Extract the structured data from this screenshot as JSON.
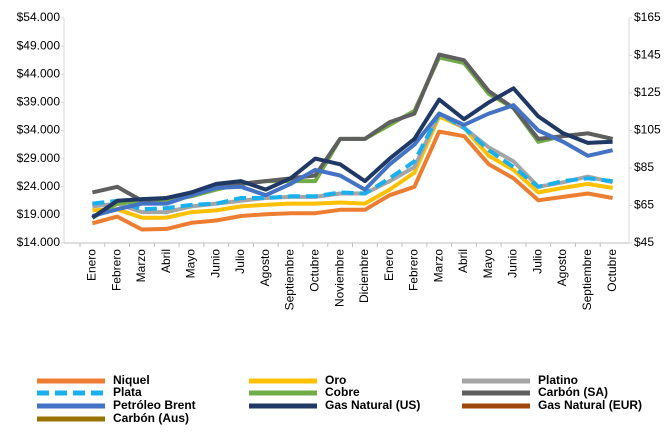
{
  "chart_data": {
    "type": "line",
    "categories": [
      "Enero",
      "Febrero",
      "Marzo",
      "Abril",
      "Mayo",
      "Junio",
      "Julio",
      "Agosto",
      "Septiembre",
      "Octubre",
      "Noviembre",
      "Diciembre",
      "Enero",
      "Febrero",
      "Marzo",
      "Abril",
      "Mayo",
      "Junio",
      "Julio",
      "Agosto",
      "Septiembre",
      "Octubre"
    ],
    "ylim": [
      14000,
      54000
    ],
    "yticks": [
      {
        "value": 14000,
        "label": "$14.000"
      },
      {
        "value": 19000,
        "label": "$19.000"
      },
      {
        "value": 24000,
        "label": "$24.000"
      },
      {
        "value": 29000,
        "label": "$29.000"
      },
      {
        "value": 34000,
        "label": "$34.000"
      },
      {
        "value": 39000,
        "label": "$39.000"
      },
      {
        "value": 44000,
        "label": "$44.000"
      },
      {
        "value": 49000,
        "label": "$49.000"
      },
      {
        "value": 54000,
        "label": "$54.000"
      }
    ],
    "y2lim": [
      45,
      165
    ],
    "y2ticks": [
      {
        "value": 45,
        "label": "$45"
      },
      {
        "value": 65,
        "label": "$65"
      },
      {
        "value": 85,
        "label": "$85"
      },
      {
        "value": 105,
        "label": "$105"
      },
      {
        "value": 125,
        "label": "$125"
      },
      {
        "value": 145,
        "label": "$145"
      },
      {
        "value": 165,
        "label": "$165"
      }
    ],
    "grid": false,
    "legend": "bottom",
    "series": [
      {
        "name": "Niquel",
        "color": "#ed7d31",
        "values": [
          17500,
          18700,
          16400,
          16500,
          17600,
          18000,
          18800,
          19100,
          19300,
          19300,
          19900,
          19900,
          22500,
          24000,
          33800,
          33000,
          28000,
          25500,
          21600,
          22200,
          22800,
          22000
        ]
      },
      {
        "name": "Oro",
        "color": "#ffc000",
        "axis": "y2",
        "values": [
          62.4,
          63,
          58.5,
          58.5,
          61.5,
          62.4,
          64.5,
          65.4,
          66,
          66,
          66.6,
          66,
          73.5,
          82.5,
          112.5,
          106.5,
          91.5,
          84,
          72,
          74.4,
          76.5,
          74.4
        ]
      },
      {
        "name": "Platino",
        "color": "#a5a5a5",
        "axis": "y2",
        "values": [
          64.5,
          66,
          61.5,
          61.5,
          64.5,
          66,
          67.5,
          69,
          69.6,
          69.6,
          71.4,
          71.4,
          78,
          85.5,
          114,
          106.5,
          96,
          88.5,
          75,
          77.4,
          80.4,
          77.4
        ]
      },
      {
        "name": "Plata",
        "color": "#1ab0ee",
        "axis": "y2",
        "dashed": true,
        "values": [
          66,
          67.5,
          63,
          63.6,
          65.4,
          66,
          69,
          69,
          69.9,
          69.9,
          72,
          71.4,
          79.5,
          88.5,
          114,
          106.5,
          94.5,
          85.5,
          75,
          78,
          79.5,
          78
        ]
      },
      {
        "name": "Cobre",
        "color": "#70ad47",
        "axis": "y2",
        "values": [
          58.5,
          66,
          67.5,
          67.5,
          69.9,
          73.5,
          76.5,
          78,
          78,
          78,
          100.5,
          100.5,
          108,
          115.5,
          144,
          141,
          124.5,
          117,
          99,
          102,
          103.5,
          100.5
        ]
      },
      {
        "name": "Carbón (SA)",
        "color": "#5f5f5f",
        "axis": "y2",
        "values": [
          72,
          75,
          67.5,
          69,
          72,
          75,
          76.5,
          78,
          79.5,
          81,
          100.5,
          100.5,
          109.5,
          114,
          145.5,
          142.5,
          126,
          117,
          100.5,
          102,
          103.5,
          100.5
        ]
      },
      {
        "name": "Petróleo Brent",
        "color": "#4472c4",
        "axis": "y2",
        "values": [
          59.4,
          63,
          66,
          66,
          70.5,
          74.4,
          75,
          70.5,
          76.5,
          84,
          81,
          73.5,
          87,
          97.5,
          114,
          108,
          114,
          118.5,
          105,
          99,
          91.5,
          94.5
        ]
      },
      {
        "name": "Gas Natural (US)",
        "color": "#203864",
        "axis": "y2",
        "values": [
          58.5,
          67.5,
          68.4,
          69,
          72,
          76.5,
          78,
          73.5,
          79.5,
          90,
          87,
          78,
          90,
          100.5,
          121.5,
          111,
          120,
          127.5,
          112.5,
          103.5,
          98.4,
          99
        ]
      },
      {
        "name": "Gas Natural (EUR)",
        "color": "#9e480e",
        "axis": "y2",
        "values": [
          null,
          null,
          null,
          null,
          null,
          null,
          null,
          null,
          null,
          null,
          null,
          null,
          null,
          null,
          null,
          null,
          null,
          null,
          null,
          null,
          null,
          null
        ]
      },
      {
        "name": "Carbón (Aus)",
        "color": "#997300",
        "axis": "y2",
        "values": [
          null,
          null,
          null,
          null,
          null,
          null,
          null,
          null,
          null,
          null,
          null,
          null,
          null,
          null,
          null,
          null,
          null,
          null,
          null,
          null,
          null,
          null
        ]
      }
    ]
  }
}
